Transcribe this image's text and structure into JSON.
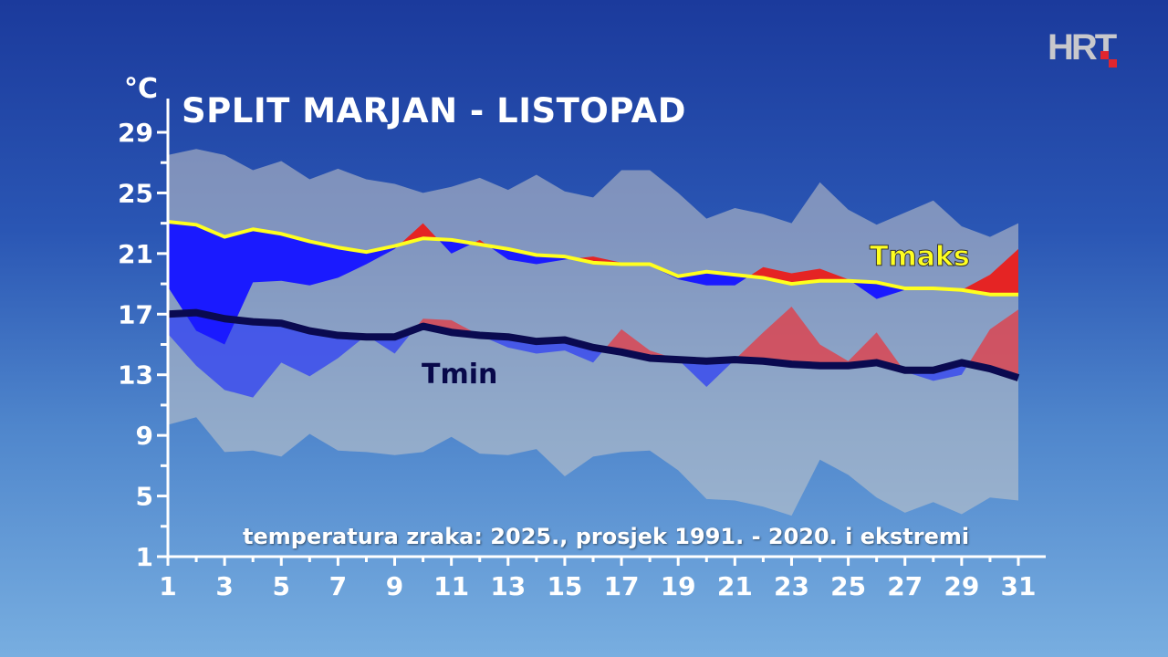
{
  "logo": {
    "text": "HRT"
  },
  "chart_data": {
    "type": "line",
    "title": "SPLIT MARJAN - LISTOPAD",
    "ylabel": "°C",
    "note": "temperatura zraka: 2025., prosjek 1991. - 2020. i ekstremi",
    "ylim": [
      1,
      29
    ],
    "xlim": [
      1,
      31
    ],
    "y_ticks": [
      "1",
      "5",
      "9",
      "13",
      "17",
      "21",
      "25",
      "29"
    ],
    "x_ticks": [
      "1",
      "3",
      "5",
      "7",
      "9",
      "11",
      "13",
      "15",
      "17",
      "19",
      "21",
      "23",
      "25",
      "27",
      "29",
      "31"
    ],
    "grid": false,
    "colors": {
      "tmax_mean": "#ffff1e",
      "tmin_mean": "#0a0a50",
      "below": "#1a1aff",
      "above": "#e52424",
      "extremes": "#c8c8c8"
    },
    "x": [
      1,
      2,
      3,
      4,
      5,
      6,
      7,
      8,
      9,
      10,
      11,
      12,
      13,
      14,
      15,
      16,
      17,
      18,
      19,
      20,
      21,
      22,
      23,
      24,
      25,
      26,
      27,
      28,
      29,
      30,
      31
    ],
    "series": [
      {
        "name": "Tmaks",
        "role": "mean_1991_2020",
        "values": [
          23.1,
          22.9,
          22.1,
          22.6,
          22.3,
          21.8,
          21.4,
          21.1,
          21.5,
          22.0,
          21.9,
          21.6,
          21.3,
          20.9,
          20.8,
          20.4,
          20.3,
          20.3,
          19.5,
          19.8,
          19.6,
          19.4,
          19.0,
          19.2,
          19.2,
          19.1,
          18.7,
          18.7,
          18.6,
          18.3,
          18.3
        ]
      },
      {
        "name": "Tmin",
        "role": "mean_1991_2020",
        "values": [
          17.0,
          17.1,
          16.7,
          16.5,
          16.4,
          15.9,
          15.6,
          15.5,
          15.5,
          16.2,
          15.8,
          15.6,
          15.5,
          15.2,
          15.3,
          14.8,
          14.5,
          14.1,
          14.0,
          13.9,
          14.0,
          13.9,
          13.7,
          13.6,
          13.6,
          13.8,
          13.3,
          13.3,
          13.8,
          13.4,
          12.8
        ]
      },
      {
        "role": "tmax_2025",
        "values": [
          18.8,
          15.9,
          15.0,
          19.1,
          19.2,
          18.9,
          19.4,
          20.3,
          21.3,
          23.0,
          21.0,
          21.9,
          20.6,
          20.3,
          20.6,
          20.8,
          20.4,
          20.2,
          19.3,
          18.9,
          18.9,
          20.1,
          19.7,
          20.0,
          19.3,
          18.0,
          18.6,
          18.6,
          18.6,
          19.6,
          21.3
        ]
      },
      {
        "role": "tmin_2025",
        "values": [
          15.7,
          13.6,
          12.0,
          11.5,
          13.8,
          12.9,
          14.1,
          15.6,
          14.4,
          16.7,
          16.6,
          15.6,
          14.8,
          14.4,
          14.6,
          13.8,
          16.0,
          14.6,
          14.0,
          12.2,
          14.0,
          15.8,
          17.5,
          15.0,
          13.9,
          15.8,
          13.2,
          12.6,
          13.0,
          16.0,
          17.3
        ]
      },
      {
        "role": "absolute_max",
        "values": [
          27.5,
          27.9,
          27.5,
          26.5,
          27.1,
          25.9,
          26.6,
          25.9,
          25.6,
          25.0,
          25.4,
          26.0,
          25.2,
          26.2,
          25.1,
          24.7,
          26.5,
          26.5,
          25.0,
          23.3,
          24.0,
          23.6,
          23.0,
          25.7,
          23.9,
          22.9,
          23.7,
          24.5,
          22.8,
          22.1,
          23.0
        ]
      },
      {
        "role": "absolute_min",
        "values": [
          9.7,
          10.2,
          7.9,
          8.0,
          7.6,
          9.1,
          8.0,
          7.9,
          7.7,
          7.9,
          8.9,
          7.8,
          7.7,
          8.1,
          6.3,
          7.6,
          7.9,
          8.0,
          6.7,
          4.8,
          4.7,
          4.3,
          3.7,
          7.4,
          6.4,
          4.9,
          3.9,
          4.6,
          3.8,
          4.9,
          4.7
        ]
      }
    ]
  }
}
